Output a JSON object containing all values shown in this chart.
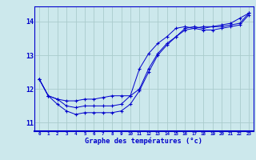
{
  "title": "Graphe des températures (°c)",
  "background_color": "#cce8ec",
  "grid_color": "#aacccc",
  "line_color": "#0000cc",
  "x_ticks": [
    0,
    1,
    2,
    3,
    4,
    5,
    6,
    7,
    8,
    9,
    10,
    11,
    12,
    13,
    14,
    15,
    16,
    17,
    18,
    19,
    20,
    21,
    22,
    23
  ],
  "ylim": [
    10.75,
    14.45
  ],
  "yticks": [
    11,
    12,
    13,
    14
  ],
  "line1": {
    "x": [
      0,
      1,
      2,
      3,
      4,
      5,
      6,
      7,
      8,
      9,
      10,
      11,
      12,
      13,
      14,
      15,
      16,
      17,
      18,
      19,
      20,
      21,
      22,
      23
    ],
    "y": [
      12.3,
      11.8,
      11.55,
      11.35,
      11.25,
      11.3,
      11.3,
      11.3,
      11.3,
      11.35,
      11.55,
      11.95,
      12.5,
      13.0,
      13.3,
      13.55,
      13.75,
      13.8,
      13.75,
      13.75,
      13.8,
      13.85,
      13.9,
      14.2
    ]
  },
  "line2": {
    "x": [
      0,
      1,
      2,
      3,
      4,
      5,
      6,
      7,
      8,
      9,
      10,
      11,
      12,
      13,
      14,
      15,
      16,
      17,
      18,
      19,
      20,
      21,
      22,
      23
    ],
    "y": [
      12.3,
      11.8,
      11.7,
      11.65,
      11.65,
      11.7,
      11.7,
      11.75,
      11.8,
      11.8,
      11.8,
      12.0,
      12.6,
      13.05,
      13.35,
      13.55,
      13.8,
      13.85,
      13.8,
      13.85,
      13.85,
      13.9,
      13.95,
      14.25
    ]
  },
  "line3": {
    "x": [
      0,
      1,
      2,
      3,
      4,
      5,
      6,
      7,
      8,
      9,
      10,
      11,
      12,
      13,
      14,
      15,
      16,
      17,
      18,
      19,
      20,
      21,
      22,
      23
    ],
    "y": [
      12.3,
      11.8,
      11.7,
      11.5,
      11.45,
      11.5,
      11.5,
      11.5,
      11.5,
      11.55,
      11.8,
      12.6,
      13.05,
      13.35,
      13.55,
      13.8,
      13.85,
      13.8,
      13.85,
      13.85,
      13.9,
      13.95,
      14.1,
      14.25
    ]
  }
}
